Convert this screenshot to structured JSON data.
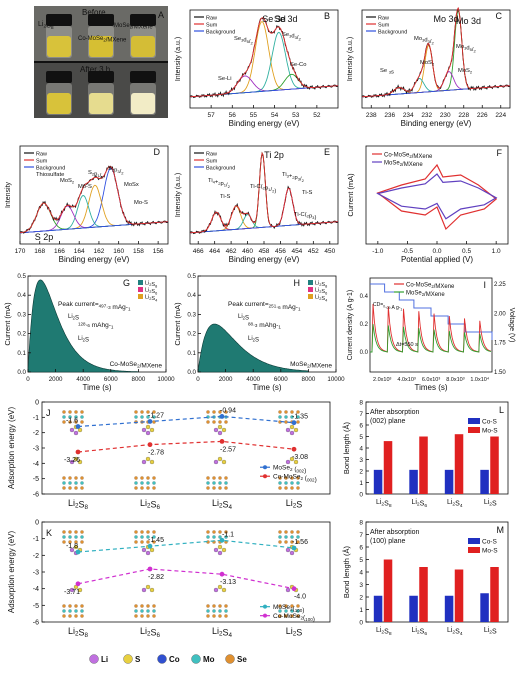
{
  "figure": {
    "panel_A": {
      "letter": "A",
      "top_label": "Before",
      "bottom_label": "After 3 h",
      "vial_labels": [
        "Li2S8",
        "MoSe2/MXene",
        "Co-MoSe2/MXene"
      ],
      "vial_colors_before": [
        "#d8c23a",
        "#d6bf33",
        "#d4bd36"
      ],
      "vial_colors_after": [
        "#d8c23a",
        "#e6dc8f",
        "#f2ecc6"
      ]
    },
    "chart_data": [
      {
        "id": "B",
        "type": "line",
        "title": "Se 3d",
        "xlabel": "Binding energy (eV)",
        "ylabel": "Intensity (a.u.)",
        "xlim": [
          58,
          51
        ],
        "xticks": [
          57,
          56,
          55,
          54,
          53,
          52
        ],
        "legend": [
          "Raw",
          "Sum",
          "Background"
        ],
        "legend_colors": [
          "#111111",
          "#e03030",
          "#3050e0"
        ],
        "peak_labels": [
          "Se 3d",
          "Se3d5/2",
          "Se3d3/2",
          "Se-Li",
          "Se-Co"
        ],
        "peaks": [
          {
            "center": 54.6,
            "width": 0.45,
            "height": 0.75,
            "color": "#e0a020"
          },
          {
            "center": 53.8,
            "width": 0.45,
            "height": 0.62,
            "color": "#30b0a0"
          },
          {
            "center": 55.4,
            "width": 0.5,
            "height": 0.18,
            "color": "#a030c0"
          },
          {
            "center": 53.2,
            "width": 0.45,
            "height": 0.16,
            "color": "#30a030"
          }
        ]
      },
      {
        "id": "C",
        "type": "line",
        "title": "Mo 3d",
        "xlabel": "Binding energy (eV)",
        "ylabel": "Intensity (a.u.)",
        "xlim": [
          239,
          223
        ],
        "xticks": [
          238,
          236,
          234,
          232,
          230,
          228,
          226,
          224
        ],
        "legend": [
          "Raw",
          "Sum",
          "Background"
        ],
        "legend_colors": [
          "#111111",
          "#e03030",
          "#3050e0"
        ],
        "peak_labels": [
          "Mo 3d",
          "Mo3d3/2",
          "Mo3d5/2",
          "MoS2",
          "MoS2",
          "Se 3s"
        ],
        "peaks": [
          {
            "center": 228.6,
            "width": 0.55,
            "height": 0.85,
            "color": "#30a030"
          },
          {
            "center": 231.8,
            "width": 0.6,
            "height": 0.5,
            "color": "#e0a020"
          },
          {
            "center": 229.6,
            "width": 0.7,
            "height": 0.2,
            "color": "#a030c0"
          },
          {
            "center": 232.8,
            "width": 0.7,
            "height": 0.15,
            "color": "#30b0a0"
          },
          {
            "center": 235.0,
            "width": 0.8,
            "height": 0.07,
            "color": "#e07030"
          }
        ]
      },
      {
        "id": "D",
        "type": "line",
        "title": "S 2p",
        "xlabel": "Binding energy (eV)",
        "ylabel": "Intensity",
        "xlim": [
          170,
          155
        ],
        "xticks": [
          170,
          168,
          166,
          164,
          162,
          160,
          158,
          156
        ],
        "legend": [
          "Raw",
          "Sum",
          "Background"
        ],
        "legend_colors": [
          "#111111",
          "#e03030",
          "#3050e0"
        ],
        "peak_labels": [
          "Thiosulfate",
          "MoS2",
          "Mo-S",
          "S2p1/2",
          "S2p3/2",
          "MoSx",
          "Mo-S"
        ],
        "peaks": [
          {
            "center": 160.8,
            "width": 1.0,
            "height": 0.62,
            "color": "#3050e0"
          },
          {
            "center": 162.4,
            "width": 0.9,
            "height": 0.45,
            "color": "#e0a020"
          },
          {
            "center": 163.6,
            "width": 0.8,
            "height": 0.35,
            "color": "#30b0a0"
          },
          {
            "center": 165.2,
            "width": 0.9,
            "height": 0.25,
            "color": "#a030c0"
          },
          {
            "center": 167.6,
            "width": 1.0,
            "height": 0.3,
            "color": "#30a030"
          }
        ]
      },
      {
        "id": "E",
        "type": "line",
        "title": "Ti 2p",
        "xlabel": "Binding energy (eV)",
        "ylabel": "Intensity (a.u.)",
        "xlim": [
          467,
          449
        ],
        "xticks": [
          466,
          464,
          462,
          460,
          458,
          456,
          454,
          452,
          450
        ],
        "legend": [
          "Raw",
          "Sum",
          "Background"
        ],
        "legend_colors": [
          "#111111",
          "#e03030",
          "#3050e0"
        ],
        "peak_labels": [
          "Ti4+2p1/2",
          "Ti-S",
          "Ti-C(2p1/2)",
          "Ti3+2p3/2",
          "Ti-S",
          "Ti-C(2p3)"
        ],
        "peaks": [
          {
            "center": 458.2,
            "width": 0.5,
            "height": 0.8,
            "color": "#30a030"
          },
          {
            "center": 455.0,
            "width": 0.7,
            "height": 0.4,
            "color": "#a030c0"
          },
          {
            "center": 461.4,
            "width": 0.8,
            "height": 0.25,
            "color": "#e0a020"
          },
          {
            "center": 463.8,
            "width": 0.8,
            "height": 0.2,
            "color": "#e03030"
          },
          {
            "center": 460.0,
            "width": 0.7,
            "height": 0.15,
            "color": "#30b0a0"
          }
        ]
      },
      {
        "id": "F",
        "type": "line",
        "xlabel": "Potential applied (V)",
        "ylabel": "Current (mA)",
        "xlim": [
          -1.2,
          1.2
        ],
        "xticks": [
          -1.0,
          -0.5,
          0.0,
          0.5,
          1.0
        ],
        "series": [
          {
            "name": "Co-MoSe2/MXene",
            "color": "#e03030",
            "scale": 1.0
          },
          {
            "name": "MoSe2/MXene",
            "color": "#6040c0",
            "scale": 0.7
          }
        ]
      },
      {
        "id": "G",
        "type": "area",
        "xlabel": "Time (s)",
        "ylabel": "Current (mA)",
        "xlim": [
          0,
          10000
        ],
        "ylim": [
          0,
          0.5
        ],
        "xticks": [
          0,
          2000,
          4000,
          6000,
          8000,
          10000
        ],
        "yticks": [
          0.0,
          0.1,
          0.2,
          0.3,
          0.4,
          0.5
        ],
        "legend": [
          "Li2S8",
          "Li2S6",
          "Li2S4"
        ],
        "legend_colors": [
          "#208080",
          "#e03080",
          "#e0a020"
        ],
        "peak_current": 0.48,
        "peak_time": 900,
        "annotations": [
          "Peak current=497.3 mAg-1",
          "128.6 mAhg-1",
          "Li2S",
          "Li2S"
        ],
        "sample": "Co-MoSe2/MXene",
        "fill": "#1f7a72"
      },
      {
        "id": "H",
        "type": "area",
        "xlabel": "Time (s)",
        "ylabel": "Current (mA)",
        "xlim": [
          0,
          10000
        ],
        "ylim": [
          0,
          0.5
        ],
        "xticks": [
          0,
          2000,
          4000,
          6000,
          8000,
          10000
        ],
        "yticks": [
          0.0,
          0.1,
          0.2,
          0.3,
          0.4,
          0.5
        ],
        "legend": [
          "Li2S8",
          "Li2S6",
          "Li2S4"
        ],
        "legend_colors": [
          "#208080",
          "#e03080",
          "#e0a020"
        ],
        "peak_current": 0.25,
        "peak_time": 1200,
        "annotations": [
          "Peak current=251.6 mAg-1",
          "88.3 mAhg-1",
          "Li2S",
          "Li2S"
        ],
        "sample": "MoSe2/MXene",
        "fill": "#1f7a72"
      },
      {
        "id": "I",
        "type": "line",
        "xlabel": "Times (s)",
        "ylabel": "Current density (A g-1)",
        "y2label": "Voltage (V)",
        "xticks": [
          "2.0x10^3",
          "4.0x10^3",
          "6.0x10^3",
          "8.0x10^3",
          "1.0x10^4"
        ],
        "yticks": [
          "0.0",
          "0.2",
          "0.4"
        ],
        "y2ticks": [
          "1.50",
          "1.75",
          "2.00",
          "2.25"
        ],
        "annotations": [
          "CD=0.09 A g-1",
          "Δt=550 s"
        ],
        "series": [
          {
            "name": "Co-MoSe2/MXene",
            "color": "#e03030"
          },
          {
            "name": "MoSe2/MXene",
            "color": "#30a030"
          }
        ],
        "voltage_color": "#5070e0"
      },
      {
        "id": "J",
        "type": "line",
        "ylabel": "Adsorption energy (eV)",
        "categories": [
          "Li2S8",
          "Li2S6",
          "Li2S4",
          "Li2S"
        ],
        "ylim": [
          0,
          -6
        ],
        "yticks": [
          0,
          -1,
          -2,
          -3,
          -4,
          -5,
          -6
        ],
        "series": [
          {
            "name": "MoSe2 (002)",
            "color": "#3070d0",
            "values": [
              -1.6,
              -1.27,
              -0.94,
              -1.35
            ]
          },
          {
            "name": "Co-MoSe2 (002)",
            "color": "#e03030",
            "values": [
              -3.26,
              -2.78,
              -2.57,
              -3.08
            ]
          }
        ],
        "value_labels": [
          "-3.26",
          "-2.78",
          "-2.57",
          "-3.08",
          "-1.6",
          "-1.27",
          "-0.94",
          "-1.35"
        ]
      },
      {
        "id": "K",
        "type": "line",
        "ylabel": "Adsorption energy (eV)",
        "categories": [
          "Li2S8",
          "Li2S6",
          "Li2S4",
          "Li2S"
        ],
        "ylim": [
          0,
          -6
        ],
        "yticks": [
          0,
          -1,
          -2,
          -3,
          -4,
          -5,
          -6
        ],
        "series": [
          {
            "name": "MoSe2(100)",
            "color": "#30b0c0",
            "values": [
              -1.8,
              -1.45,
              -1.1,
              -1.56
            ]
          },
          {
            "name": "Co-MoSe2(100)",
            "color": "#d030d0",
            "values": [
              -3.71,
              -2.82,
              -3.13,
              -4.0
            ]
          }
        ],
        "value_labels": [
          "-3.71",
          "-2.82",
          "-3.13",
          "-4.0",
          "-1.8",
          "-1.45",
          "-1.1",
          "-1.56"
        ]
      },
      {
        "id": "L",
        "type": "bar",
        "title": "After absorption (002) plane",
        "ylabel": "Bond length (Å)",
        "categories": [
          "Li2S8",
          "Li2S6",
          "Li2S4",
          "Li2S"
        ],
        "ylim": [
          0,
          8
        ],
        "yticks": [
          0,
          1,
          2,
          3,
          4,
          5,
          6,
          7,
          8
        ],
        "series": [
          {
            "name": "Co-S",
            "color": "#2030c0",
            "values": [
              2.1,
              2.1,
              2.1,
              2.1
            ]
          },
          {
            "name": "Mo-S",
            "color": "#e02020",
            "values": [
              4.6,
              5.0,
              5.2,
              5.0
            ]
          }
        ]
      },
      {
        "id": "M",
        "type": "bar",
        "title": "After absorption (100) plane",
        "ylabel": "Bond length (Å)",
        "categories": [
          "Li2S8",
          "Li2S6",
          "Li2S4",
          "Li2S"
        ],
        "ylim": [
          0,
          8
        ],
        "yticks": [
          0,
          1,
          2,
          3,
          4,
          5,
          6,
          7,
          8
        ],
        "series": [
          {
            "name": "Co-S",
            "color": "#2030c0",
            "values": [
              2.1,
              2.1,
              2.1,
              2.3
            ]
          },
          {
            "name": "Mo-S",
            "color": "#e02020",
            "values": [
              5.0,
              4.4,
              4.2,
              4.4
            ]
          }
        ]
      }
    ],
    "atom_legend": [
      {
        "symbol": "Li",
        "color": "#c070e0"
      },
      {
        "symbol": "S",
        "color": "#e8d040"
      },
      {
        "symbol": "Co",
        "color": "#3050d0"
      },
      {
        "symbol": "Mo",
        "color": "#40c0c0"
      },
      {
        "symbol": "Se",
        "color": "#e09030"
      }
    ]
  }
}
